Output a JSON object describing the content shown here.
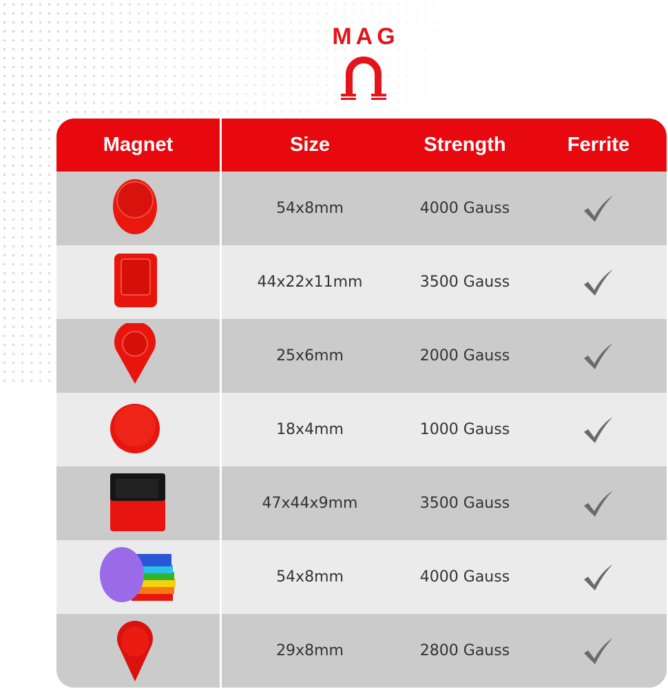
{
  "logo": {
    "text": "MAG",
    "icon": "horseshoe-magnet-omega-icon",
    "color": "#e3151a"
  },
  "table": {
    "header_color": "#e8090f",
    "headers": [
      "Magnet",
      "Size",
      "Strength",
      "Ferrite"
    ],
    "rows": [
      {
        "image": "oval-red-magnet",
        "size": "54x8mm",
        "strength": "4000 Gauss",
        "ferrite": true
      },
      {
        "image": "rectangular-red-magnet",
        "size": "44x22x11mm",
        "strength": "3500 Gauss",
        "ferrite": true
      },
      {
        "image": "teardrop-red-magnet",
        "size": "25x6mm",
        "strength": "2000 Gauss",
        "ferrite": true
      },
      {
        "image": "round-red-magnet",
        "size": "18x4mm",
        "strength": "1000 Gauss",
        "ferrite": true
      },
      {
        "image": "black-red-square-magnet",
        "size": "47x44x9mm",
        "strength": "3500 Gauss",
        "ferrite": true
      },
      {
        "image": "multicolor-oval-magnets",
        "size": "54x8mm",
        "strength": "4000 Gauss",
        "ferrite": true
      },
      {
        "image": "pin-red-magnet",
        "size": "29x8mm",
        "strength": "2800 Gauss",
        "ferrite": true
      }
    ]
  }
}
